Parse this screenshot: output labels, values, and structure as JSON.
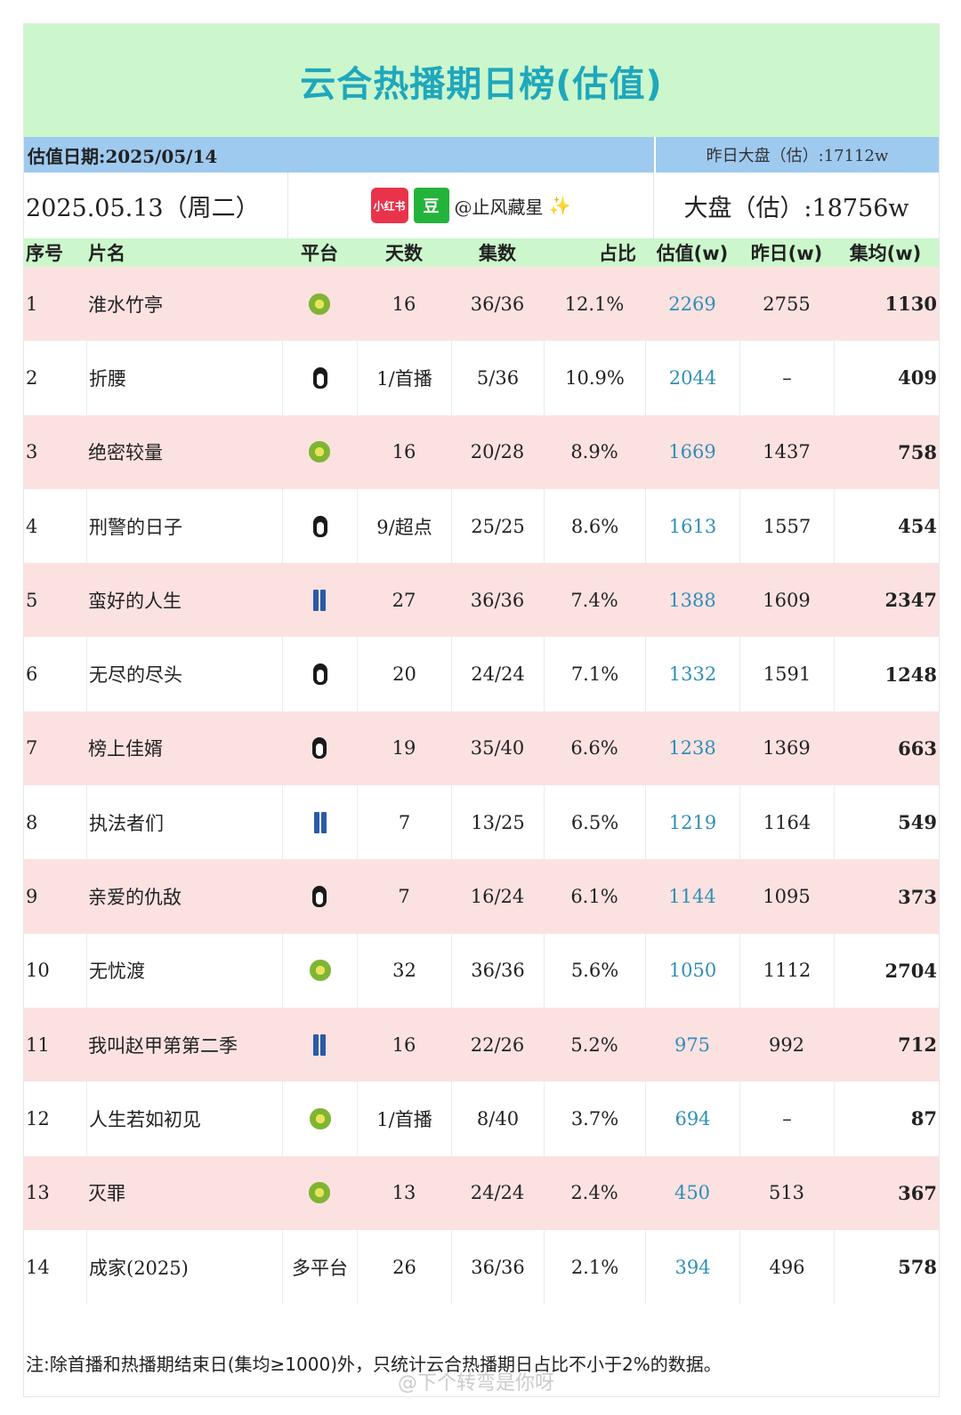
{
  "title": "云合热播期日榜(估值)",
  "estimate_date": "估值日期:2025/05/14",
  "yesterday_total": "昨日大盘（估）:17112w",
  "day": "2025.05.13（周二）",
  "handle": {
    "xhs_logo": "小红书",
    "douban_logo": "豆",
    "text": "@止风藏星",
    "sparkle_icon": "sparkles-icon"
  },
  "total": "大盘（估）:18756w",
  "columns": [
    "序号",
    "片名",
    "平台",
    "天数",
    "集数",
    "占比",
    "估值(w)",
    "昨日(w)",
    "集均(w)"
  ],
  "rows": [
    {
      "no": "1",
      "name": "淮水竹亭",
      "platform": "kiwi",
      "days": "16",
      "episodes": "36/36",
      "share": "12.1%",
      "value": "2269",
      "prev": "2755",
      "avg": "1130"
    },
    {
      "no": "2",
      "name": "折腰",
      "platform": "penguin",
      "days": "1/首播",
      "episodes": "5/36",
      "share": "10.9%",
      "value": "2044",
      "prev": "–",
      "avg": "409"
    },
    {
      "no": "3",
      "name": "绝密较量",
      "platform": "kiwi",
      "days": "16",
      "episodes": "20/28",
      "share": "8.9%",
      "value": "1669",
      "prev": "1437",
      "avg": "758"
    },
    {
      "no": "4",
      "name": "刑警的日子",
      "platform": "penguin",
      "days": "9/超点",
      "episodes": "25/25",
      "share": "8.6%",
      "value": "1613",
      "prev": "1557",
      "avg": "454"
    },
    {
      "no": "5",
      "name": "蛮好的人生",
      "platform": "jeans",
      "days": "27",
      "episodes": "36/36",
      "share": "7.4%",
      "value": "1388",
      "prev": "1609",
      "avg": "2347"
    },
    {
      "no": "6",
      "name": "无尽的尽头",
      "platform": "penguin",
      "days": "20",
      "episodes": "24/24",
      "share": "7.1%",
      "value": "1332",
      "prev": "1591",
      "avg": "1248"
    },
    {
      "no": "7",
      "name": "榜上佳婿",
      "platform": "penguin",
      "days": "19",
      "episodes": "35/40",
      "share": "6.6%",
      "value": "1238",
      "prev": "1369",
      "avg": "663"
    },
    {
      "no": "8",
      "name": "执法者们",
      "platform": "jeans",
      "days": "7",
      "episodes": "13/25",
      "share": "6.5%",
      "value": "1219",
      "prev": "1164",
      "avg": "549"
    },
    {
      "no": "9",
      "name": "亲爱的仇敌",
      "platform": "penguin",
      "days": "7",
      "episodes": "16/24",
      "share": "6.1%",
      "value": "1144",
      "prev": "1095",
      "avg": "373"
    },
    {
      "no": "10",
      "name": "无忧渡",
      "platform": "kiwi",
      "days": "32",
      "episodes": "36/36",
      "share": "5.6%",
      "value": "1050",
      "prev": "1112",
      "avg": "2704"
    },
    {
      "no": "11",
      "name": "我叫赵甲第第二季",
      "platform": "jeans",
      "days": "16",
      "episodes": "22/26",
      "share": "5.2%",
      "value": "975",
      "prev": "992",
      "avg": "712"
    },
    {
      "no": "12",
      "name": "人生若如初见",
      "platform": "kiwi",
      "days": "1/首播",
      "episodes": "8/40",
      "share": "3.7%",
      "value": "694",
      "prev": "–",
      "avg": "87"
    },
    {
      "no": "13",
      "name": "灭罪",
      "platform": "kiwi",
      "days": "13",
      "episodes": "24/24",
      "share": "2.4%",
      "value": "450",
      "prev": "513",
      "avg": "367"
    },
    {
      "no": "14",
      "name": "成家(2025)",
      "platform": "多平台",
      "days": "26",
      "episodes": "36/36",
      "share": "2.1%",
      "value": "394",
      "prev": "496",
      "avg": "578"
    }
  ],
  "footer": "注:除首播和热播期结束日(集均≥1000)外，只统计云合热播期日占比不小于2%的数据。",
  "watermark": "@下个转弯是你呀",
  "colors": {
    "title_bg": "#ccf7cc",
    "title_text": "#1fa7bc",
    "date_bar": "#9fcaf0",
    "odd_row": "#fce1e1",
    "value_text": "#2f8fb8"
  }
}
